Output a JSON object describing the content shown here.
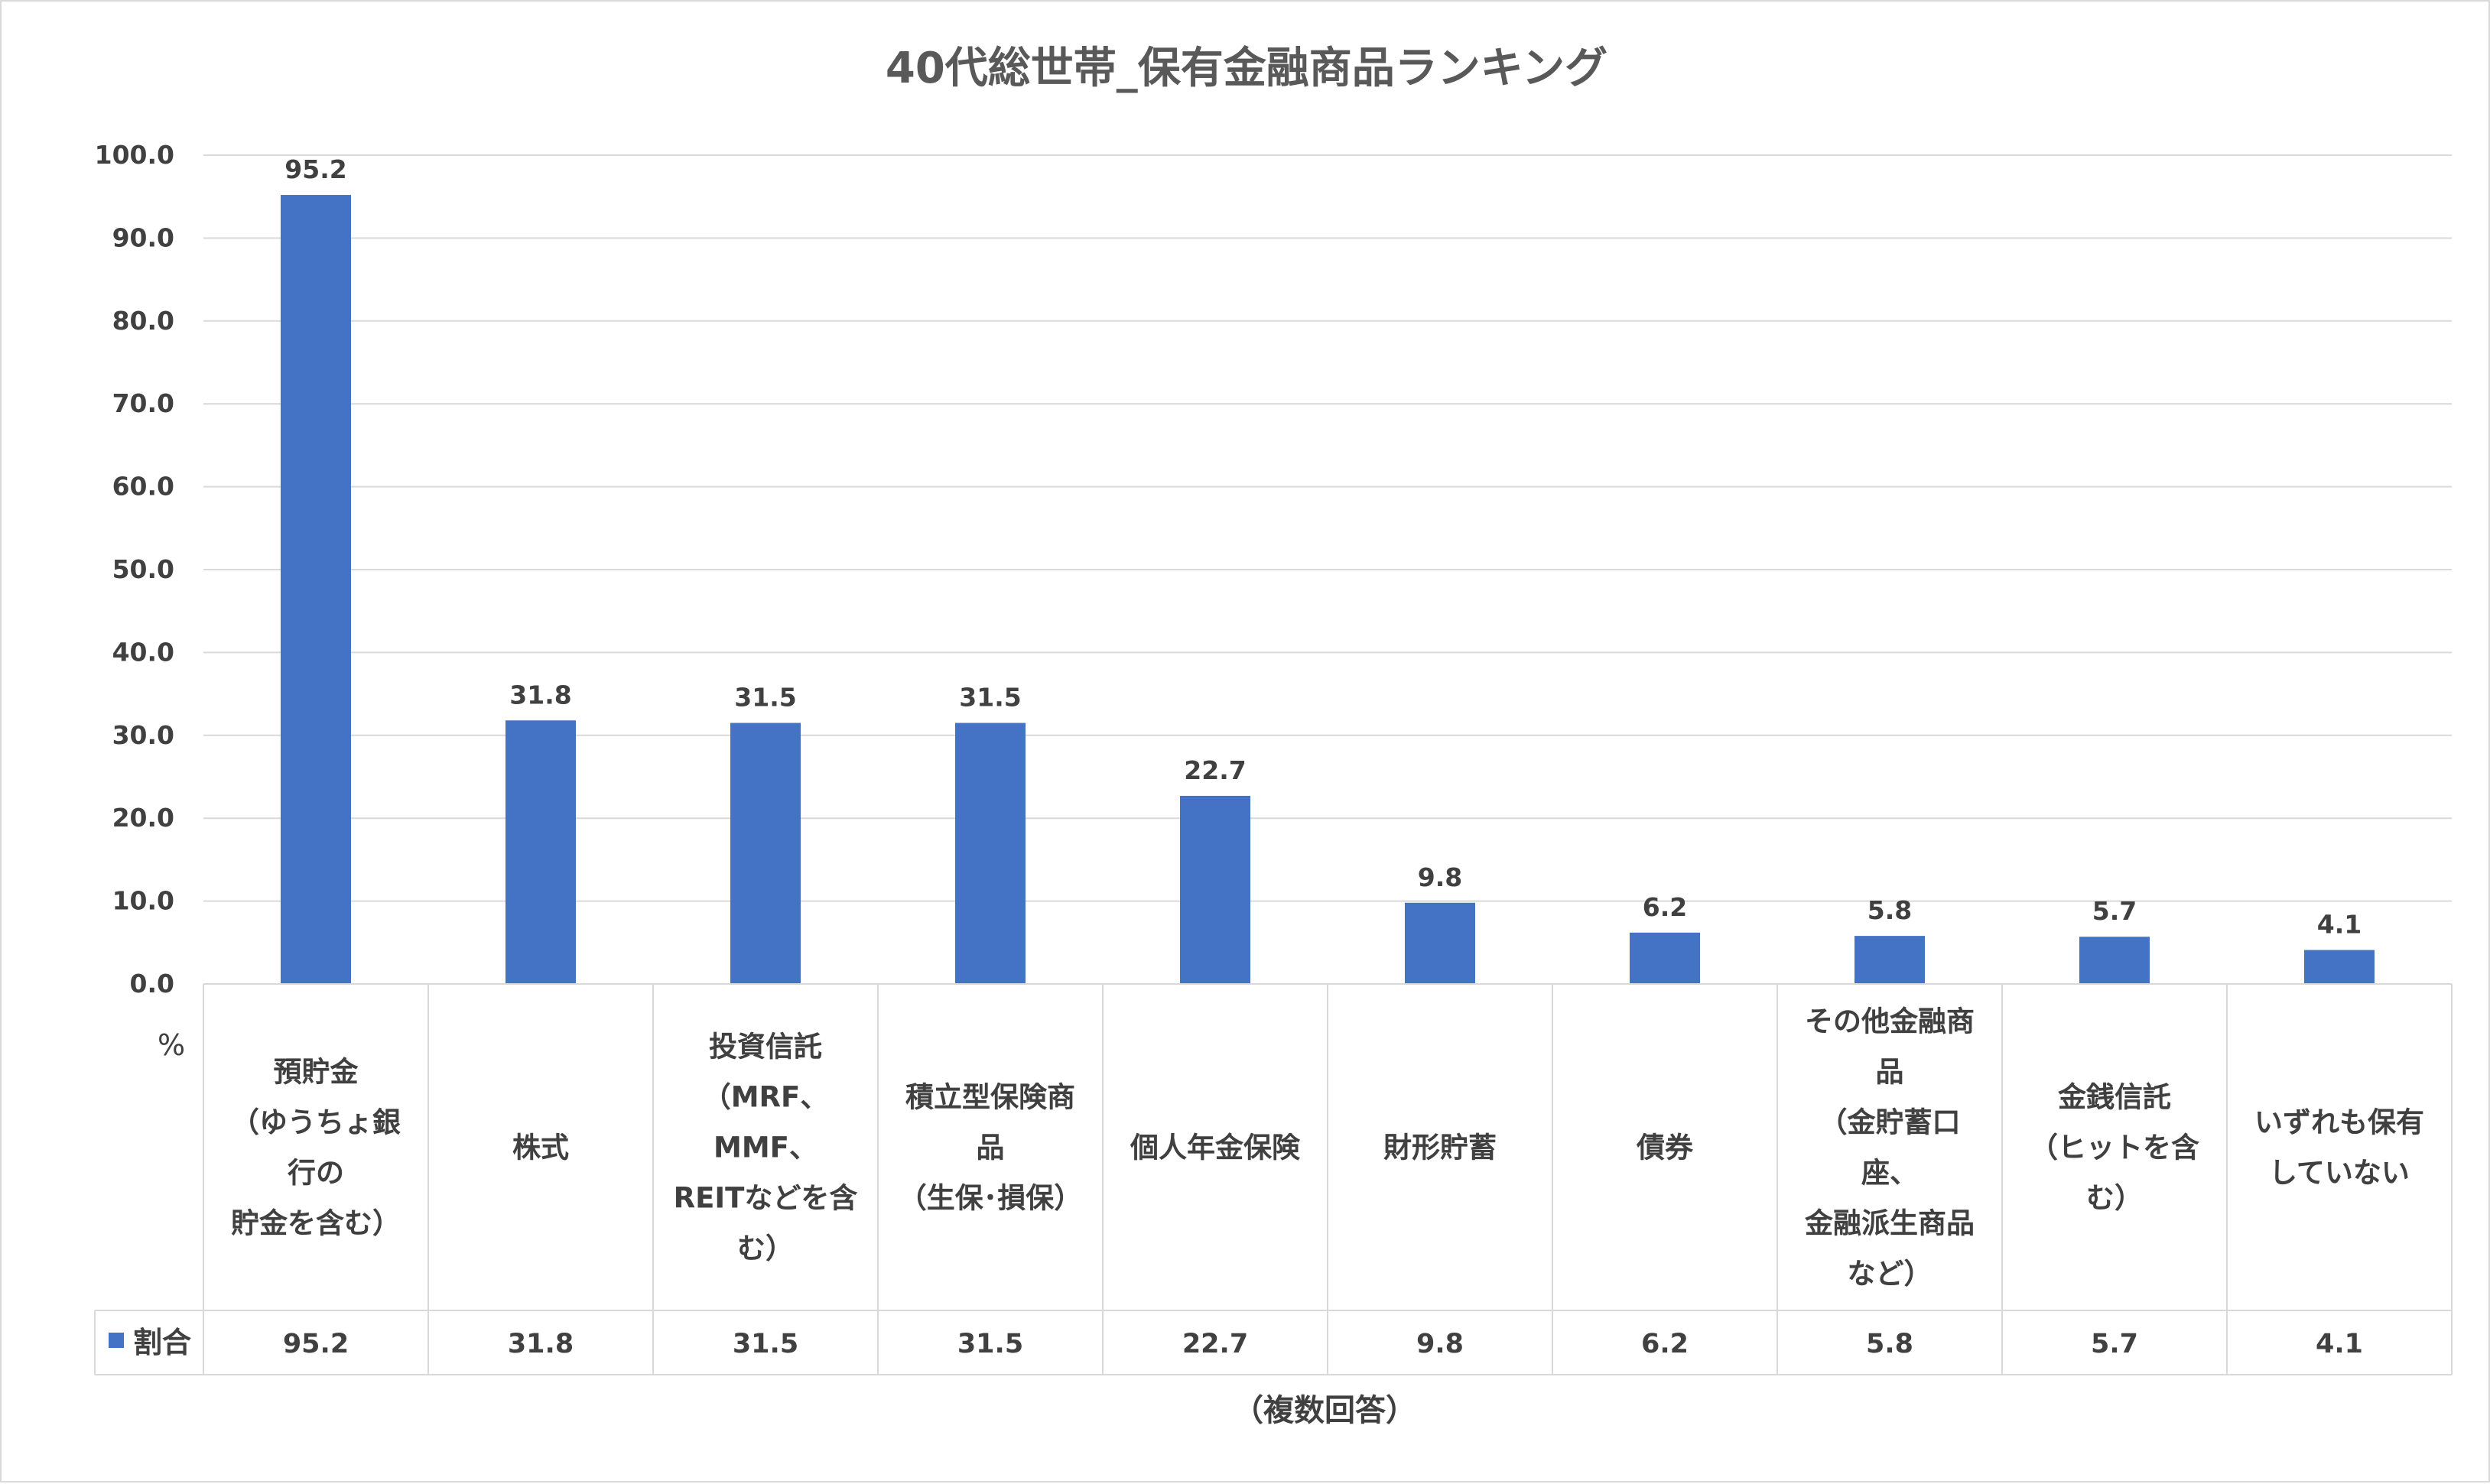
{
  "chart_data": {
    "type": "bar",
    "title": "40代総世帯_保有金融商品ランキング",
    "ylabel": "%",
    "xlabel": "（複数回答）",
    "ylim": [
      0,
      100
    ],
    "yticks": [
      "0.0",
      "10.0",
      "20.0",
      "30.0",
      "40.0",
      "50.0",
      "60.0",
      "70.0",
      "80.0",
      "90.0",
      "100.0"
    ],
    "grid": true,
    "legend": "data-table",
    "categories": [
      [
        "預貯金",
        "（ゆうちょ銀",
        "行の",
        "貯金を含む）"
      ],
      [
        "株式"
      ],
      [
        "投資信託",
        "（MRF、",
        "MMF、",
        "REITなどを含",
        "む）"
      ],
      [
        "積立型保険商",
        "品",
        "（生保･損保）"
      ],
      [
        "個人年金保険"
      ],
      [
        "財形貯蓄"
      ],
      [
        "債券"
      ],
      [
        "その他金融商",
        "品",
        "（金貯蓄口",
        "座、",
        "金融派生商品",
        "など）"
      ],
      [
        "金銭信託",
        "（ヒットを含",
        "む）"
      ],
      [
        "いずれも保有",
        "していない"
      ]
    ],
    "series": [
      {
        "name": "割合",
        "color": "#4472c4",
        "values": [
          95.2,
          31.8,
          31.5,
          31.5,
          22.7,
          9.8,
          6.2,
          5.8,
          5.7,
          4.1
        ],
        "labels": [
          "95.2",
          "31.8",
          "31.5",
          "31.5",
          "22.7",
          "9.8",
          "6.2",
          "5.8",
          "5.7",
          "4.1"
        ]
      }
    ]
  }
}
